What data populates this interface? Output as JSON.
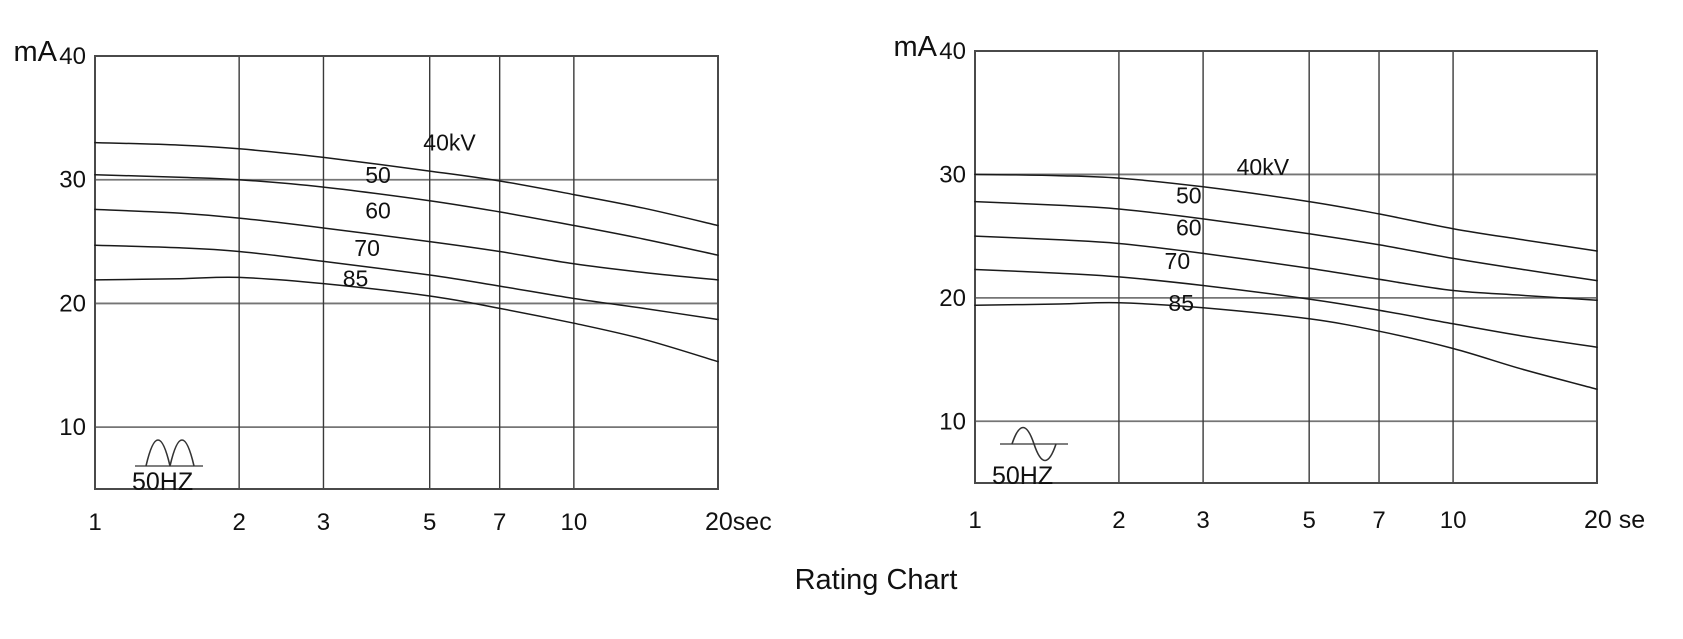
{
  "title": "Rating Chart",
  "colors": {
    "background": "#ffffff",
    "curve": "#1a1a1a",
    "grid_vertical": "#3a3a3a",
    "grid_horizontal": "#757575",
    "border": "#4a4a4a",
    "text": "#111111",
    "icon": "#333333"
  },
  "chart_data": [
    {
      "id": "full-wave-rating-chart",
      "type": "line",
      "x_scale": "log",
      "x_unit": "sec",
      "y_unit": "mA",
      "xlim": [
        1,
        20
      ],
      "ylim": [
        5,
        40
      ],
      "grid": true,
      "x_ticks": [
        1,
        2,
        3,
        5,
        7,
        10,
        20
      ],
      "x_tick_labels": [
        "1",
        "2",
        "3",
        "5",
        "7",
        "10",
        "20sec"
      ],
      "y_ticks": [
        40,
        30,
        20,
        10
      ],
      "frequency_label": "50HZ",
      "waveform_icon": "full-wave-rectified-icon",
      "x_seconds": [
        1,
        1.5,
        2,
        3,
        5,
        7,
        10,
        14,
        20
      ],
      "series": [
        {
          "name": "40kV",
          "label": "40kV",
          "label_at": [
            5.5,
            33.0
          ],
          "values_mA": [
            33.0,
            32.8,
            32.5,
            31.8,
            30.7,
            29.9,
            28.8,
            27.7,
            26.3
          ]
        },
        {
          "name": "50kV",
          "label": "50",
          "label_at": [
            3.9,
            30.4
          ],
          "values_mA": [
            30.4,
            30.2,
            30.0,
            29.4,
            28.3,
            27.4,
            26.3,
            25.2,
            23.9
          ]
        },
        {
          "name": "60kV",
          "label": "60",
          "label_at": [
            3.9,
            27.5
          ],
          "values_mA": [
            27.6,
            27.3,
            26.9,
            26.1,
            25.0,
            24.2,
            23.2,
            22.5,
            21.9
          ]
        },
        {
          "name": "70kV",
          "label": "70",
          "label_at": [
            3.7,
            24.5
          ],
          "values_mA": [
            24.7,
            24.5,
            24.2,
            23.4,
            22.3,
            21.4,
            20.4,
            19.6,
            18.7
          ]
        },
        {
          "name": "85kV",
          "label": "85",
          "label_at": [
            3.5,
            22.0
          ],
          "values_mA": [
            21.9,
            22.0,
            22.1,
            21.6,
            20.6,
            19.6,
            18.4,
            17.1,
            15.3
          ]
        }
      ]
    },
    {
      "id": "self-rectified-rating-chart",
      "type": "line",
      "x_scale": "log",
      "x_unit": "sec",
      "y_unit": "mA",
      "xlim": [
        1,
        20
      ],
      "ylim": [
        5,
        40
      ],
      "grid": true,
      "x_ticks": [
        1,
        2,
        3,
        5,
        7,
        10,
        20
      ],
      "x_tick_labels": [
        "1",
        "2",
        "3",
        "5",
        "7",
        "10",
        "20 se"
      ],
      "y_ticks": [
        40,
        30,
        20,
        10
      ],
      "frequency_label": "50HZ",
      "waveform_icon": "sine-wave-icon",
      "x_seconds": [
        1,
        1.5,
        2,
        3,
        5,
        7,
        10,
        14,
        20
      ],
      "series": [
        {
          "name": "40kV",
          "label": "40kV",
          "label_at": [
            4.0,
            30.6
          ],
          "values_mA": [
            30.0,
            29.9,
            29.7,
            29.0,
            27.8,
            26.8,
            25.6,
            24.7,
            23.8
          ]
        },
        {
          "name": "50kV",
          "label": "50",
          "label_at": [
            2.8,
            28.3
          ],
          "values_mA": [
            27.8,
            27.5,
            27.2,
            26.4,
            25.2,
            24.3,
            23.2,
            22.3,
            21.4
          ]
        },
        {
          "name": "60kV",
          "label": "60",
          "label_at": [
            2.8,
            25.7
          ],
          "values_mA": [
            25.0,
            24.7,
            24.4,
            23.6,
            22.4,
            21.5,
            20.6,
            20.2,
            19.8
          ]
        },
        {
          "name": "70kV",
          "label": "70",
          "label_at": [
            2.65,
            23.0
          ],
          "values_mA": [
            22.3,
            22.0,
            21.7,
            21.0,
            19.9,
            19.0,
            17.9,
            16.9,
            16.0
          ]
        },
        {
          "name": "85kV",
          "label": "85",
          "label_at": [
            2.7,
            19.6
          ],
          "values_mA": [
            19.4,
            19.5,
            19.6,
            19.2,
            18.3,
            17.3,
            15.9,
            14.2,
            12.6
          ]
        }
      ]
    }
  ]
}
